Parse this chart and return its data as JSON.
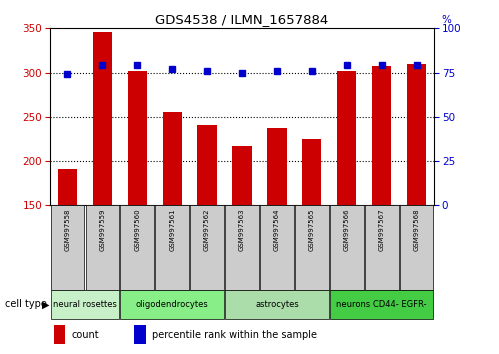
{
  "title": "GDS4538 / ILMN_1657884",
  "samples": [
    "GSM997558",
    "GSM997559",
    "GSM997560",
    "GSM997561",
    "GSM997562",
    "GSM997563",
    "GSM997564",
    "GSM997565",
    "GSM997566",
    "GSM997567",
    "GSM997568"
  ],
  "counts": [
    191,
    346,
    302,
    256,
    241,
    217,
    237,
    225,
    302,
    307,
    310
  ],
  "percentile": [
    74,
    79,
    79,
    77,
    76,
    75,
    76,
    76,
    79,
    79,
    79
  ],
  "ylim_left": [
    150,
    350
  ],
  "ylim_right": [
    0,
    100
  ],
  "yticks_left": [
    150,
    200,
    250,
    300,
    350
  ],
  "yticks_right": [
    0,
    25,
    50,
    75,
    100
  ],
  "bar_color": "#cc0000",
  "dot_color": "#0000cc",
  "bg_color": "#ffffff",
  "tick_bg": "#cccccc",
  "cell_types": [
    {
      "label": "neural rosettes",
      "count": 2,
      "color": "#c8f0c8"
    },
    {
      "label": "oligodendrocytes",
      "count": 3,
      "color": "#88ee88"
    },
    {
      "label": "astrocytes",
      "count": 3,
      "color": "#aaddaa"
    },
    {
      "label": "neurons CD44- EGFR-",
      "count": 3,
      "color": "#44cc44"
    }
  ],
  "legend_count": "count",
  "legend_pct": "percentile rank within the sample"
}
